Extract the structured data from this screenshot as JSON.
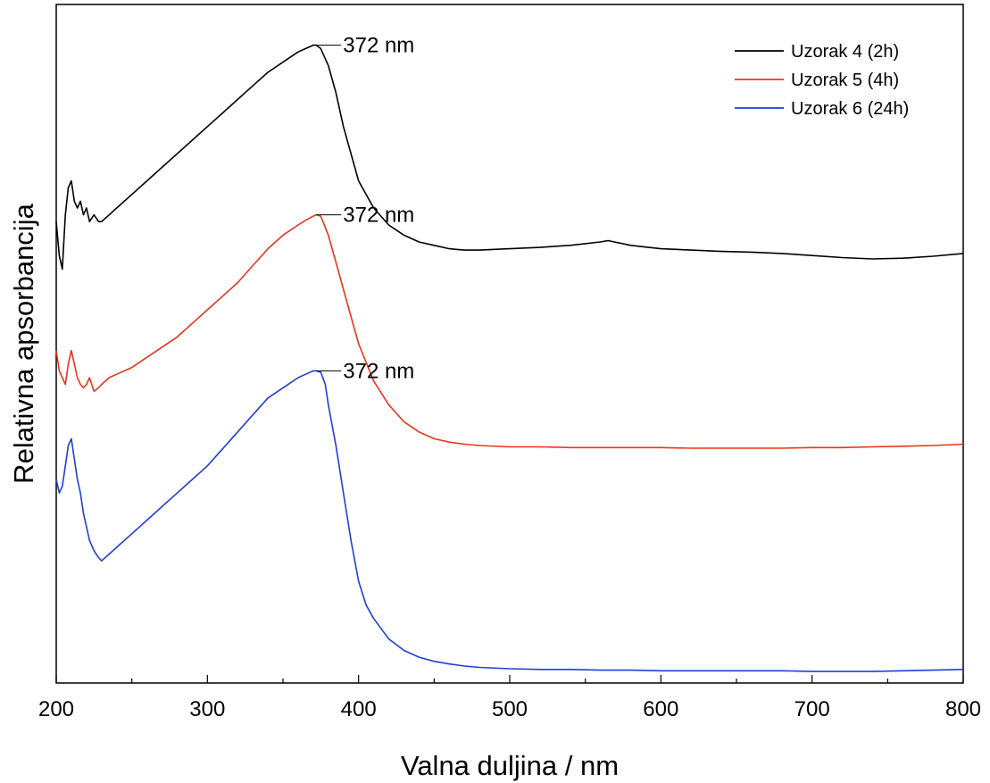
{
  "chart_data": {
    "type": "line",
    "xlabel": "Valna duljina / nm",
    "ylabel": "Relativna apsorbancija",
    "xlim": [
      200,
      800
    ],
    "ylim": [
      0,
      10
    ],
    "x_ticks": [
      200,
      300,
      400,
      500,
      600,
      700,
      800
    ],
    "x_tick_labels": [
      "200",
      "300",
      "400",
      "500",
      "600",
      "700",
      "800"
    ],
    "y_ticks_shown": false,
    "grid": false,
    "legend_position": "top-right",
    "series": [
      {
        "name": "Uzorak 4 (2h)",
        "color": "#000000",
        "x": [
          200,
          202,
          204,
          206,
          208,
          210,
          212,
          214,
          216,
          218,
          220,
          222,
          225,
          228,
          230,
          235,
          240,
          250,
          260,
          270,
          280,
          290,
          300,
          310,
          320,
          330,
          340,
          350,
          360,
          365,
          370,
          372,
          375,
          380,
          385,
          390,
          395,
          400,
          410,
          420,
          430,
          440,
          450,
          460,
          470,
          480,
          500,
          520,
          540,
          560,
          565,
          580,
          600,
          620,
          640,
          660,
          680,
          700,
          720,
          740,
          760,
          780,
          800
        ],
        "y": [
          6.8,
          6.3,
          6.1,
          6.9,
          7.3,
          7.4,
          7.1,
          7.0,
          7.1,
          6.9,
          7.0,
          6.8,
          6.9,
          6.8,
          6.8,
          6.9,
          7.0,
          7.2,
          7.4,
          7.6,
          7.8,
          8.0,
          8.2,
          8.4,
          8.6,
          8.8,
          9.0,
          9.15,
          9.3,
          9.35,
          9.4,
          9.4,
          9.35,
          9.1,
          8.7,
          8.2,
          7.8,
          7.4,
          7.0,
          6.75,
          6.6,
          6.5,
          6.45,
          6.4,
          6.38,
          6.38,
          6.4,
          6.42,
          6.45,
          6.5,
          6.52,
          6.45,
          6.4,
          6.38,
          6.36,
          6.35,
          6.33,
          6.3,
          6.27,
          6.25,
          6.26,
          6.29,
          6.33
        ]
      },
      {
        "name": "Uzorak 5 (4h)",
        "color": "#e8341c",
        "x": [
          200,
          202,
          204,
          206,
          208,
          210,
          212,
          214,
          216,
          218,
          220,
          222,
          225,
          228,
          230,
          235,
          240,
          250,
          260,
          270,
          280,
          290,
          300,
          310,
          320,
          330,
          340,
          350,
          360,
          365,
          370,
          372,
          375,
          380,
          385,
          390,
          395,
          400,
          410,
          420,
          430,
          440,
          450,
          460,
          470,
          480,
          500,
          520,
          540,
          560,
          580,
          600,
          620,
          640,
          660,
          680,
          700,
          720,
          740,
          760,
          780,
          800
        ],
        "y": [
          4.9,
          4.6,
          4.5,
          4.4,
          4.7,
          4.9,
          4.7,
          4.5,
          4.4,
          4.35,
          4.4,
          4.5,
          4.3,
          4.35,
          4.4,
          4.5,
          4.55,
          4.65,
          4.8,
          4.95,
          5.1,
          5.3,
          5.5,
          5.7,
          5.9,
          6.15,
          6.4,
          6.6,
          6.75,
          6.82,
          6.88,
          6.9,
          6.88,
          6.6,
          6.2,
          5.8,
          5.4,
          5.0,
          4.45,
          4.1,
          3.85,
          3.7,
          3.6,
          3.55,
          3.52,
          3.5,
          3.48,
          3.48,
          3.47,
          3.47,
          3.47,
          3.47,
          3.46,
          3.46,
          3.46,
          3.46,
          3.47,
          3.47,
          3.48,
          3.49,
          3.5,
          3.52
        ]
      },
      {
        "name": "Uzorak 6 (24h)",
        "color": "#1f3fd6",
        "x": [
          200,
          202,
          204,
          206,
          208,
          210,
          212,
          214,
          216,
          218,
          220,
          222,
          225,
          228,
          230,
          235,
          240,
          250,
          260,
          270,
          280,
          290,
          300,
          310,
          320,
          330,
          340,
          350,
          360,
          365,
          370,
          372,
          375,
          378,
          380,
          385,
          390,
          395,
          400,
          405,
          410,
          420,
          430,
          440,
          450,
          460,
          470,
          480,
          500,
          520,
          540,
          560,
          580,
          600,
          620,
          640,
          660,
          680,
          700,
          720,
          740,
          760,
          780,
          800
        ],
        "y": [
          3.0,
          2.8,
          2.9,
          3.2,
          3.5,
          3.6,
          3.3,
          3.0,
          2.8,
          2.5,
          2.3,
          2.1,
          1.95,
          1.85,
          1.8,
          1.9,
          2.0,
          2.2,
          2.4,
          2.6,
          2.8,
          3.0,
          3.2,
          3.45,
          3.7,
          3.95,
          4.2,
          4.35,
          4.5,
          4.55,
          4.6,
          4.6,
          4.58,
          4.4,
          4.1,
          3.5,
          2.8,
          2.1,
          1.5,
          1.15,
          0.95,
          0.65,
          0.48,
          0.38,
          0.32,
          0.28,
          0.25,
          0.23,
          0.21,
          0.2,
          0.2,
          0.19,
          0.19,
          0.18,
          0.18,
          0.18,
          0.18,
          0.18,
          0.17,
          0.17,
          0.17,
          0.18,
          0.19,
          0.2
        ]
      }
    ],
    "annotations": [
      {
        "text": "372 nm",
        "x": 372,
        "y": 9.4,
        "series": 0
      },
      {
        "text": "372 nm",
        "x": 372,
        "y": 6.9,
        "series": 1
      },
      {
        "text": "372 nm",
        "x": 372,
        "y": 4.6,
        "series": 2
      }
    ]
  }
}
